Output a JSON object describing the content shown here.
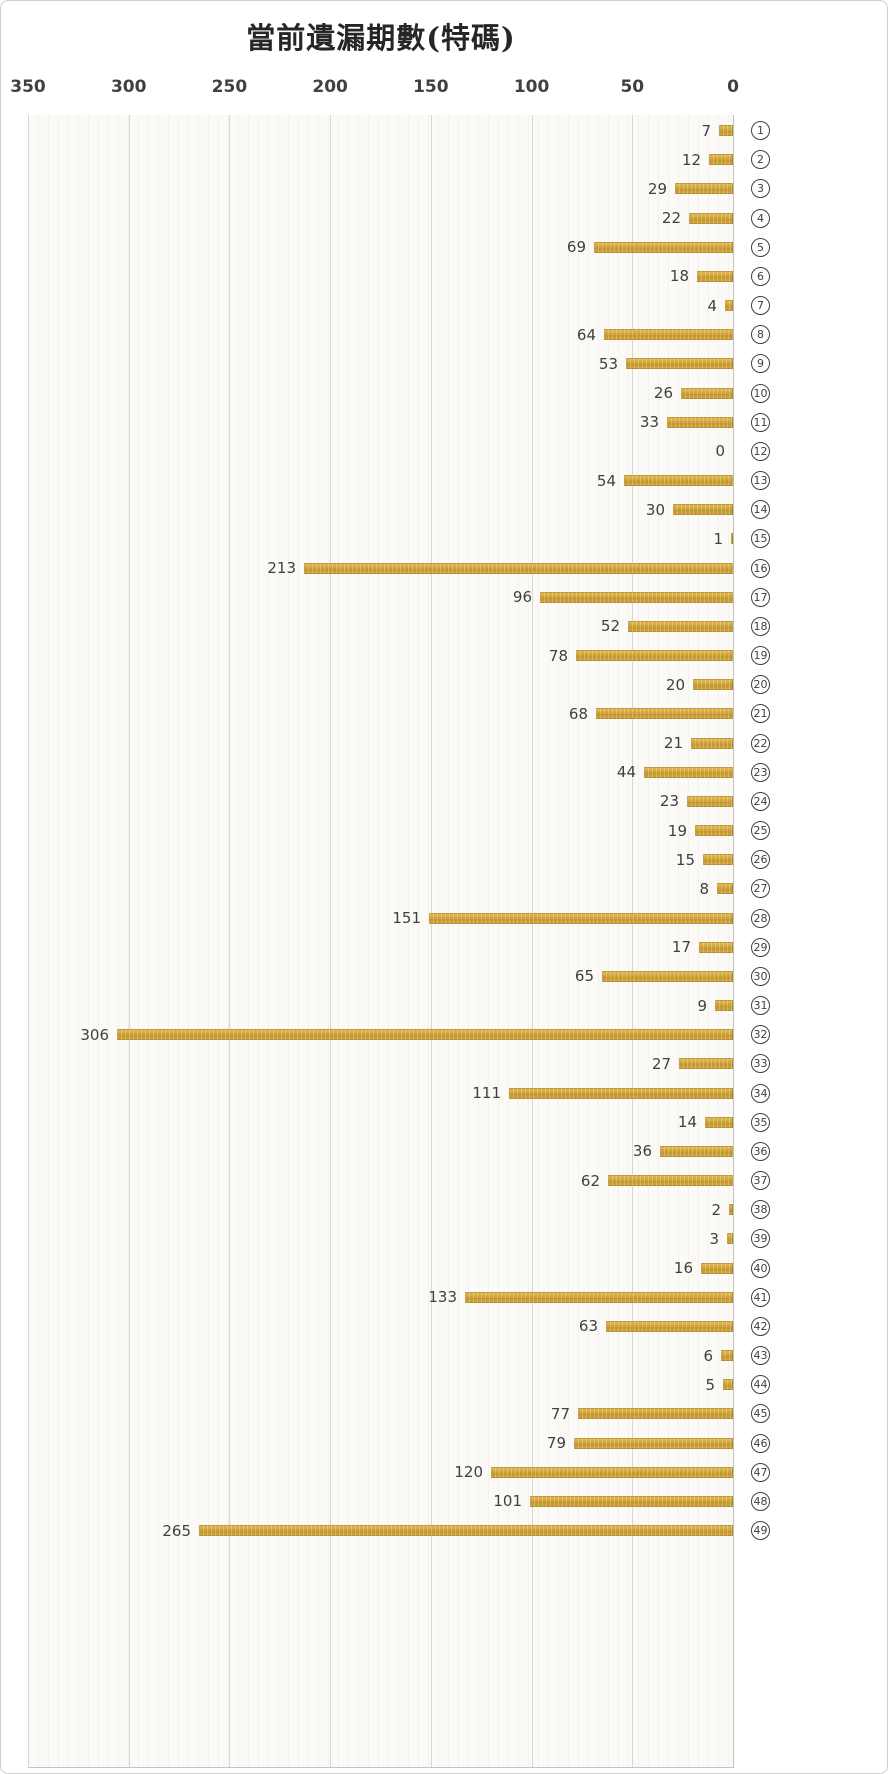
{
  "title": "當前遺漏期數(特碼)",
  "chart_data": {
    "type": "bar",
    "orientation": "horizontal",
    "title": "當前遺漏期數(特碼)",
    "category_display": "circled-number",
    "categories": [
      "1",
      "2",
      "3",
      "4",
      "5",
      "6",
      "7",
      "8",
      "9",
      "10",
      "11",
      "12",
      "13",
      "14",
      "15",
      "16",
      "17",
      "18",
      "19",
      "20",
      "21",
      "22",
      "23",
      "24",
      "25",
      "26",
      "27",
      "28",
      "29",
      "30",
      "31",
      "32",
      "33",
      "34",
      "35",
      "36",
      "37",
      "38",
      "39",
      "40",
      "41",
      "42",
      "43",
      "44",
      "45",
      "46",
      "47",
      "48",
      "49"
    ],
    "values": [
      7,
      12,
      29,
      22,
      69,
      18,
      4,
      64,
      53,
      26,
      33,
      0,
      54,
      30,
      1,
      213,
      96,
      52,
      78,
      20,
      68,
      21,
      44,
      23,
      19,
      15,
      8,
      151,
      17,
      65,
      9,
      306,
      27,
      111,
      14,
      36,
      62,
      2,
      3,
      16,
      133,
      63,
      6,
      5,
      77,
      79,
      120,
      101,
      265
    ],
    "x_axis": {
      "ticks": [
        350,
        300,
        250,
        200,
        150,
        100,
        50,
        0
      ],
      "min": 0,
      "max": 350,
      "reversed": true,
      "position": "top"
    },
    "xlabel": "",
    "ylabel": "",
    "grid": true,
    "legend": false,
    "bar_color": "#C9992B",
    "gridline_color": "#D7D6D2",
    "plot_background": "#FBFAF7",
    "text_color": "#3F3F3F"
  }
}
